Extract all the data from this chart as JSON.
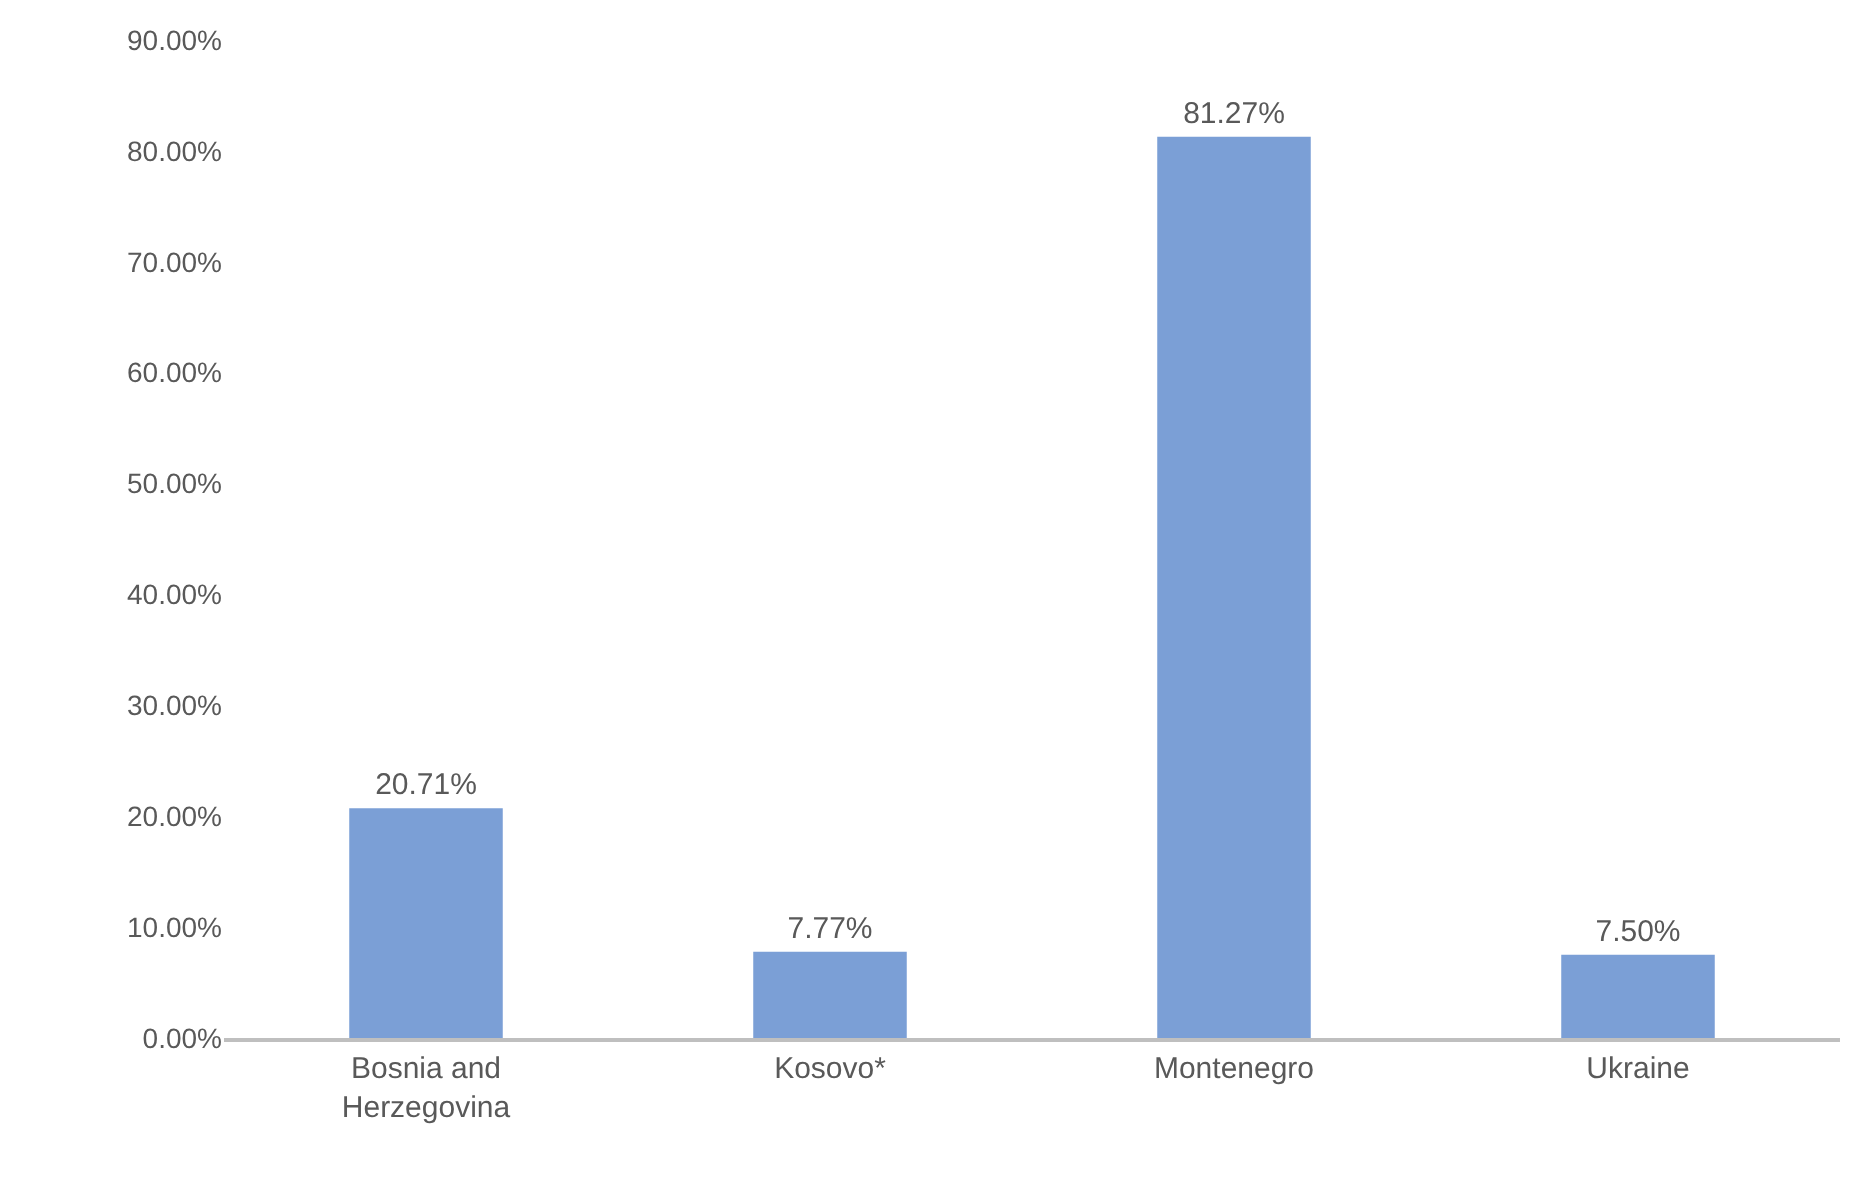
{
  "chart_data": {
    "type": "bar",
    "categories": [
      "Bosnia and Herzegovina",
      "Kosovo*",
      "Montenegro",
      "Ukraine"
    ],
    "values": [
      20.71,
      7.77,
      81.27,
      7.5
    ],
    "color": "#7b9fd6",
    "value_labels": [
      "20.71%",
      "7.77%",
      "81.27%",
      "7.50%"
    ],
    "ylim": [
      0,
      90
    ],
    "yticks": [
      {
        "value": 0,
        "label": "0.00%"
      },
      {
        "value": 10,
        "label": "10.00%"
      },
      {
        "value": 20,
        "label": "20.00%"
      },
      {
        "value": 30,
        "label": "30.00%"
      },
      {
        "value": 40,
        "label": "40.00%"
      },
      {
        "value": 50,
        "label": "50.00%"
      },
      {
        "value": 60,
        "label": "60.00%"
      },
      {
        "value": 70,
        "label": "70.00%"
      },
      {
        "value": 80,
        "label": "80.00%"
      },
      {
        "value": 90,
        "label": "90.00%"
      }
    ]
  }
}
